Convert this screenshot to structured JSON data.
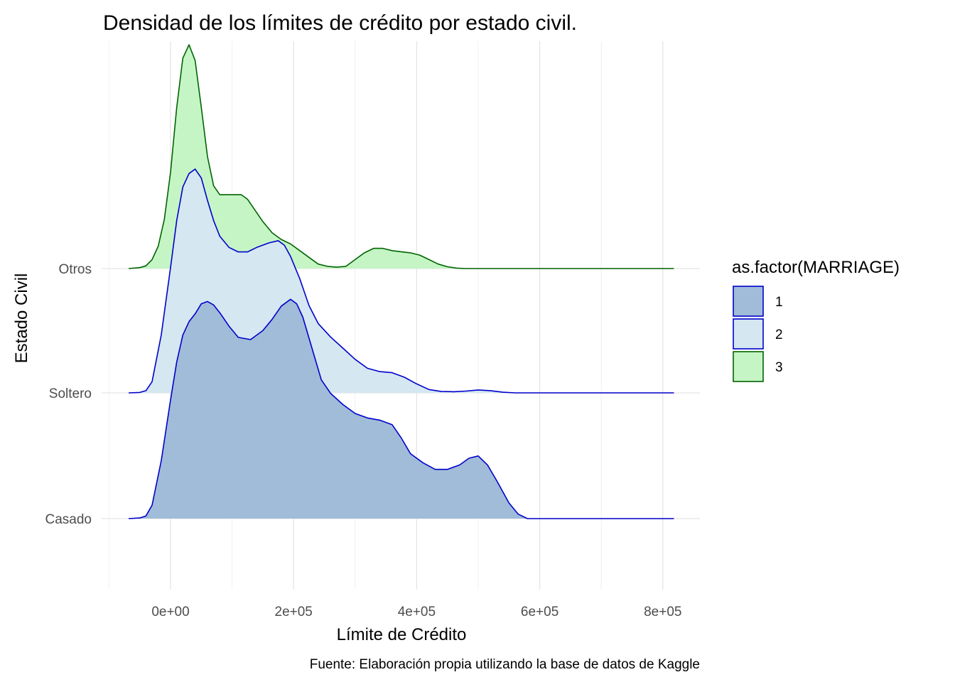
{
  "chart_data": {
    "type": "area",
    "subtype": "ridgeline-density",
    "title": "Densidad de los límites de crédito por estado civil.",
    "xlabel": "Límite de Crédito",
    "ylabel": "Estado Civil",
    "caption": "Fuente: Elaboración propia utilizando la base de datos de Kaggle",
    "xlim": [
      -100000,
      860000
    ],
    "x_ticks": [
      {
        "value": 0,
        "label": "0e+00"
      },
      {
        "value": 200000,
        "label": "2e+05"
      },
      {
        "value": 400000,
        "label": "4e+05"
      },
      {
        "value": 600000,
        "label": "6e+05"
      },
      {
        "value": 800000,
        "label": "8e+05"
      }
    ],
    "grid": true,
    "legend": {
      "title": "as.factor(MARRIAGE)",
      "position": "right",
      "entries": [
        {
          "label": "1",
          "fill": "#a0bcd8",
          "stroke": "#0000cc"
        },
        {
          "label": "2",
          "fill": "#d5e7f1",
          "stroke": "#0000cc"
        },
        {
          "label": "3",
          "fill": "#c5f5c5",
          "stroke": "#006400"
        }
      ]
    },
    "series": [
      {
        "name": "1",
        "y_label": "Casado",
        "fill": "#a0bcd8",
        "stroke": "#0000cc",
        "x": [
          -68000,
          -50000,
          -40000,
          -30000,
          -15000,
          0,
          10000,
          20000,
          30000,
          40000,
          50000,
          60000,
          70000,
          80000,
          95000,
          110000,
          130000,
          150000,
          165000,
          180000,
          195000,
          205000,
          215000,
          230000,
          245000,
          260000,
          280000,
          300000,
          320000,
          340000,
          360000,
          375000,
          390000,
          410000,
          430000,
          450000,
          470000,
          485000,
          500000,
          515000,
          530000,
          550000,
          565000,
          580000,
          600000,
          630000,
          700000,
          818000
        ],
        "y": [
          0.0,
          0.003,
          0.012,
          0.06,
          0.26,
          0.53,
          0.7,
          0.82,
          0.88,
          0.915,
          0.96,
          0.97,
          0.955,
          0.92,
          0.86,
          0.81,
          0.8,
          0.84,
          0.89,
          0.95,
          0.98,
          0.96,
          0.9,
          0.76,
          0.62,
          0.56,
          0.51,
          0.47,
          0.45,
          0.44,
          0.42,
          0.36,
          0.29,
          0.25,
          0.22,
          0.22,
          0.24,
          0.27,
          0.28,
          0.24,
          0.17,
          0.07,
          0.02,
          0.0,
          0.0,
          0.0,
          0.0,
          0.0
        ]
      },
      {
        "name": "2",
        "y_label": "Soltero",
        "fill": "#d5e7f1",
        "stroke": "#0000cc",
        "x": [
          -68000,
          -50000,
          -40000,
          -30000,
          -15000,
          0,
          10000,
          20000,
          30000,
          40000,
          50000,
          60000,
          70000,
          80000,
          95000,
          110000,
          125000,
          140000,
          160000,
          175000,
          185000,
          195000,
          210000,
          225000,
          240000,
          260000,
          280000,
          300000,
          320000,
          340000,
          360000,
          380000,
          400000,
          420000,
          440000,
          460000,
          480000,
          500000,
          520000,
          540000,
          560000,
          580000,
          600000,
          650000,
          700000,
          818000
        ],
        "y": [
          0.0,
          0.002,
          0.01,
          0.05,
          0.26,
          0.56,
          0.77,
          0.92,
          0.98,
          1.0,
          0.96,
          0.86,
          0.77,
          0.7,
          0.65,
          0.63,
          0.63,
          0.65,
          0.67,
          0.68,
          0.66,
          0.61,
          0.51,
          0.39,
          0.31,
          0.25,
          0.2,
          0.15,
          0.11,
          0.095,
          0.09,
          0.07,
          0.04,
          0.015,
          0.006,
          0.005,
          0.008,
          0.013,
          0.01,
          0.003,
          0.0,
          0.0,
          0.0,
          0.0,
          0.0,
          0.0
        ]
      },
      {
        "name": "3",
        "y_label": "Otros",
        "fill": "#c5f5c5",
        "stroke": "#006400",
        "x": [
          -68000,
          -50000,
          -40000,
          -30000,
          -20000,
          -10000,
          0,
          10000,
          20000,
          30000,
          40000,
          50000,
          60000,
          70000,
          80000,
          90000,
          100000,
          115000,
          125000,
          135000,
          150000,
          165000,
          180000,
          195000,
          210000,
          225000,
          240000,
          255000,
          270000,
          285000,
          300000,
          315000,
          330000,
          345000,
          360000,
          375000,
          390000,
          405000,
          420000,
          435000,
          450000,
          465000,
          480000,
          600000,
          818000
        ],
        "y": [
          0.0,
          0.004,
          0.012,
          0.04,
          0.1,
          0.22,
          0.43,
          0.72,
          0.94,
          1.0,
          0.93,
          0.72,
          0.5,
          0.37,
          0.33,
          0.33,
          0.33,
          0.33,
          0.31,
          0.27,
          0.21,
          0.16,
          0.13,
          0.11,
          0.08,
          0.05,
          0.02,
          0.01,
          0.006,
          0.01,
          0.04,
          0.07,
          0.09,
          0.09,
          0.08,
          0.075,
          0.07,
          0.06,
          0.04,
          0.02,
          0.008,
          0.002,
          0.0,
          0.0,
          0.0
        ]
      }
    ]
  }
}
